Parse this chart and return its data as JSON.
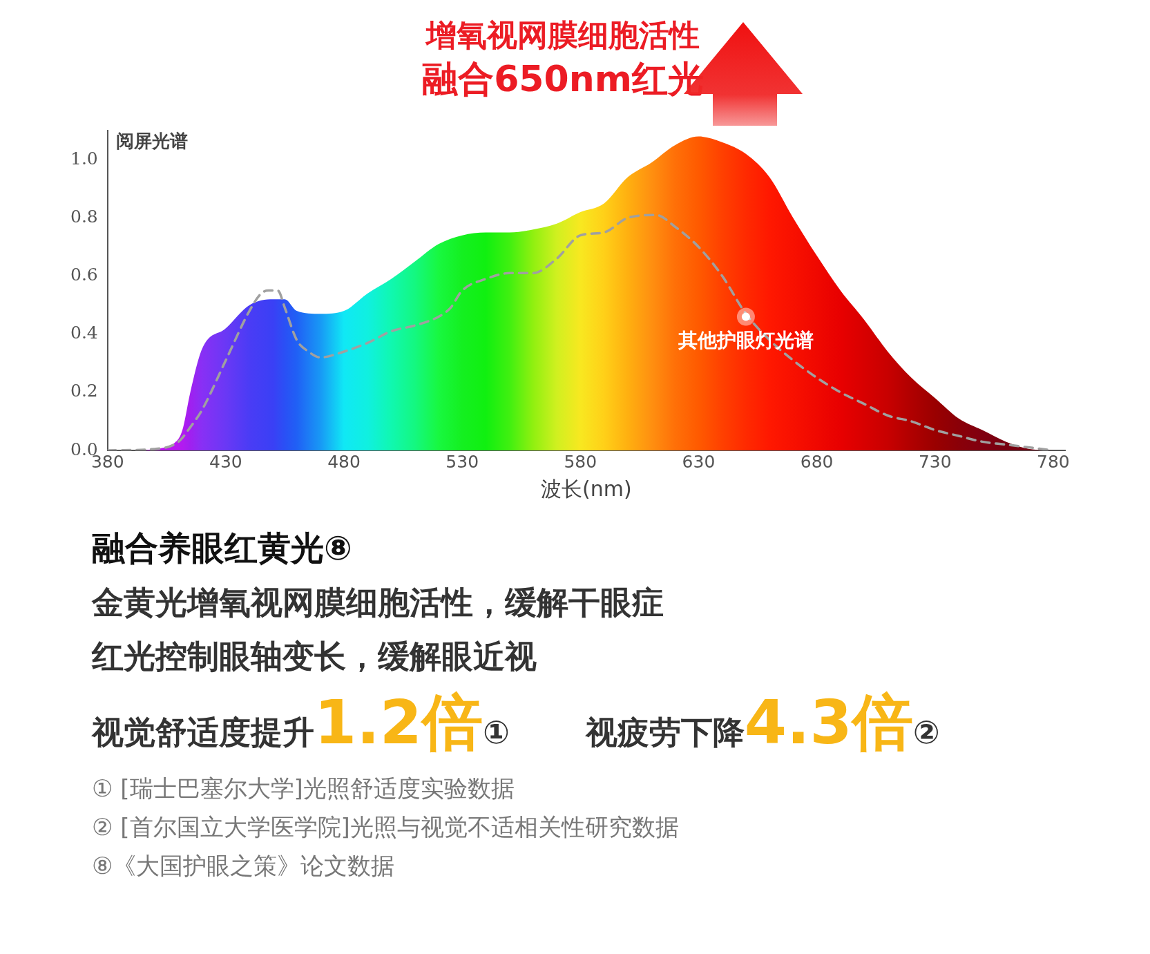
{
  "chart_data": {
    "type": "area",
    "title": "增氧视网膜细胞活性",
    "subtitle": "融合650nm红光",
    "xlabel": "波长(nm)",
    "xlim": [
      380,
      785
    ],
    "xticks": [
      380,
      430,
      480,
      530,
      580,
      630,
      680,
      730,
      780
    ],
    "ylim": [
      0,
      1.1
    ],
    "yticks": [
      {
        "value": 0,
        "label": "0.0"
      },
      0.2,
      0.4,
      0.6,
      0.8,
      {
        "value": 1,
        "label": "1.0"
      }
    ],
    "grid": false,
    "legend": false,
    "series": [
      {
        "name": "阅屏光谱",
        "x": [
          380,
          390,
          400,
          410,
          412,
          415,
          420,
          430,
          440,
          450,
          455,
          460,
          470,
          480,
          490,
          500,
          510,
          520,
          530,
          540,
          550,
          560,
          570,
          580,
          590,
          600,
          610,
          620,
          630,
          640,
          650,
          660,
          670,
          680,
          690,
          700,
          710,
          720,
          730,
          740,
          750,
          760,
          770,
          780
        ],
        "values": [
          0,
          0,
          0.005,
          0.04,
          0.08,
          0.2,
          0.35,
          0.42,
          0.5,
          0.52,
          0.52,
          0.48,
          0.47,
          0.48,
          0.54,
          0.59,
          0.65,
          0.71,
          0.74,
          0.75,
          0.75,
          0.76,
          0.78,
          0.82,
          0.85,
          0.94,
          0.99,
          1.05,
          1.08,
          1.06,
          1.02,
          0.94,
          0.8,
          0.67,
          0.55,
          0.45,
          0.34,
          0.25,
          0.18,
          0.11,
          0.07,
          0.03,
          0.005,
          0
        ],
        "colors": [
          "#c010f0",
          "#c010f0",
          "#c010f0",
          "#b818f0",
          "#b01cf0",
          "#a020f0",
          "#8830f5",
          "#6a38f5",
          "#4a3cf5",
          "#3a40f5",
          "#2a50f5",
          "#2060f5",
          "#1898f5",
          "#10e8f5",
          "#10f0e0",
          "#10f8b0",
          "#14f880",
          "#18f840",
          "#14f020",
          "#10f010",
          "#40f010",
          "#90f010",
          "#d0f020",
          "#f8e820",
          "#ffd018",
          "#ffb010",
          "#ff9010",
          "#ff7008",
          "#ff5a00",
          "#ff4000",
          "#ff2a00",
          "#ff1800",
          "#f81000",
          "#f00800",
          "#e80000",
          "#d80000",
          "#c80000",
          "#b00000",
          "#9a0000",
          "#8a0008",
          "#800010",
          "#780010",
          "#780010",
          "#780010"
        ]
      },
      {
        "type": "line",
        "color": "#a0a0a0",
        "line_style": "dashed",
        "x": [
          380,
          400,
          410,
          415,
          420,
          430,
          440,
          445,
          448,
          452,
          455,
          460,
          465,
          470,
          480,
          490,
          500,
          510,
          520,
          525,
          530,
          540,
          550,
          560,
          570,
          580,
          590,
          600,
          612,
          620,
          630,
          640,
          650,
          660,
          670,
          680,
          690,
          700,
          710,
          720,
          730,
          740,
          750,
          760,
          770,
          780
        ],
        "values": [
          0,
          0.005,
          0.03,
          0.08,
          0.14,
          0.31,
          0.48,
          0.54,
          0.55,
          0.55,
          0.49,
          0.38,
          0.34,
          0.32,
          0.34,
          0.37,
          0.41,
          0.43,
          0.46,
          0.49,
          0.55,
          0.59,
          0.61,
          0.61,
          0.66,
          0.74,
          0.75,
          0.8,
          0.81,
          0.77,
          0.7,
          0.6,
          0.47,
          0.38,
          0.31,
          0.25,
          0.2,
          0.16,
          0.12,
          0.1,
          0.07,
          0.05,
          0.03,
          0.02,
          0.01,
          0
        ]
      }
    ],
    "annotations": [
      {
        "text": "其他护眼灯光谱",
        "x": 650,
        "y": 0.46
      },
      "融合养眼红黄光⑧",
      "金黄光增氧视网膜细胞活性，缓解干眼症",
      "红光控制眼轴变长，缓解眼近视",
      "视觉舒适度提升1.2倍①",
      "视疲劳下降4.3倍②",
      "① [瑞士巴塞尔大学]光照舒适度实验数据",
      "② [首尔国立大学医学院]光照与视觉不适相关性研究数据",
      "⑧《大国护眼之策》论文数据"
    ]
  }
}
